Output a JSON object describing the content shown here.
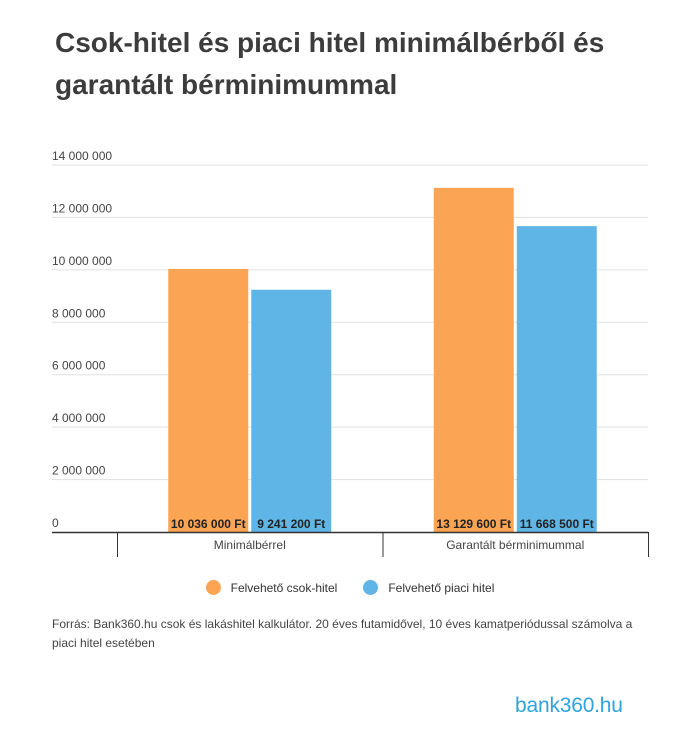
{
  "title": "Csok-hitel és piaci hitel minimálbérből és garantált bérminimummal",
  "chart_data": {
    "type": "bar",
    "categories": [
      "Minimálbérrel",
      "Garantált bérminimummal"
    ],
    "series": [
      {
        "name": "Felvehető csok-hitel",
        "values": [
          10036000,
          13129600
        ],
        "labels": [
          "10 036 000 Ft",
          "13 129 600 Ft"
        ],
        "color": "#fba453"
      },
      {
        "name": "Felvehető piaci hitel",
        "values": [
          9241200,
          11668500
        ],
        "labels": [
          "9 241 200 Ft",
          "11 668 500 Ft"
        ],
        "color": "#5fb6e6"
      }
    ],
    "ylim": [
      0,
      14000000
    ],
    "yticks": [
      0,
      2000000,
      4000000,
      6000000,
      8000000,
      10000000,
      12000000,
      14000000
    ],
    "ytick_labels": [
      "0",
      "2 000 000",
      "4 000 000",
      "6 000 000",
      "8 000 000",
      "10 000 000",
      "12 000 000",
      "14 000 000"
    ],
    "grid": true,
    "legend_position": "bottom"
  },
  "source": "Forrás: Bank360.hu csok és lakáshitel kalkulátor. 20 éves futamidővel, 10 éves kamatperiódussal számolva a piaci hitel esetében",
  "logo": {
    "text": "bank360.hu"
  }
}
